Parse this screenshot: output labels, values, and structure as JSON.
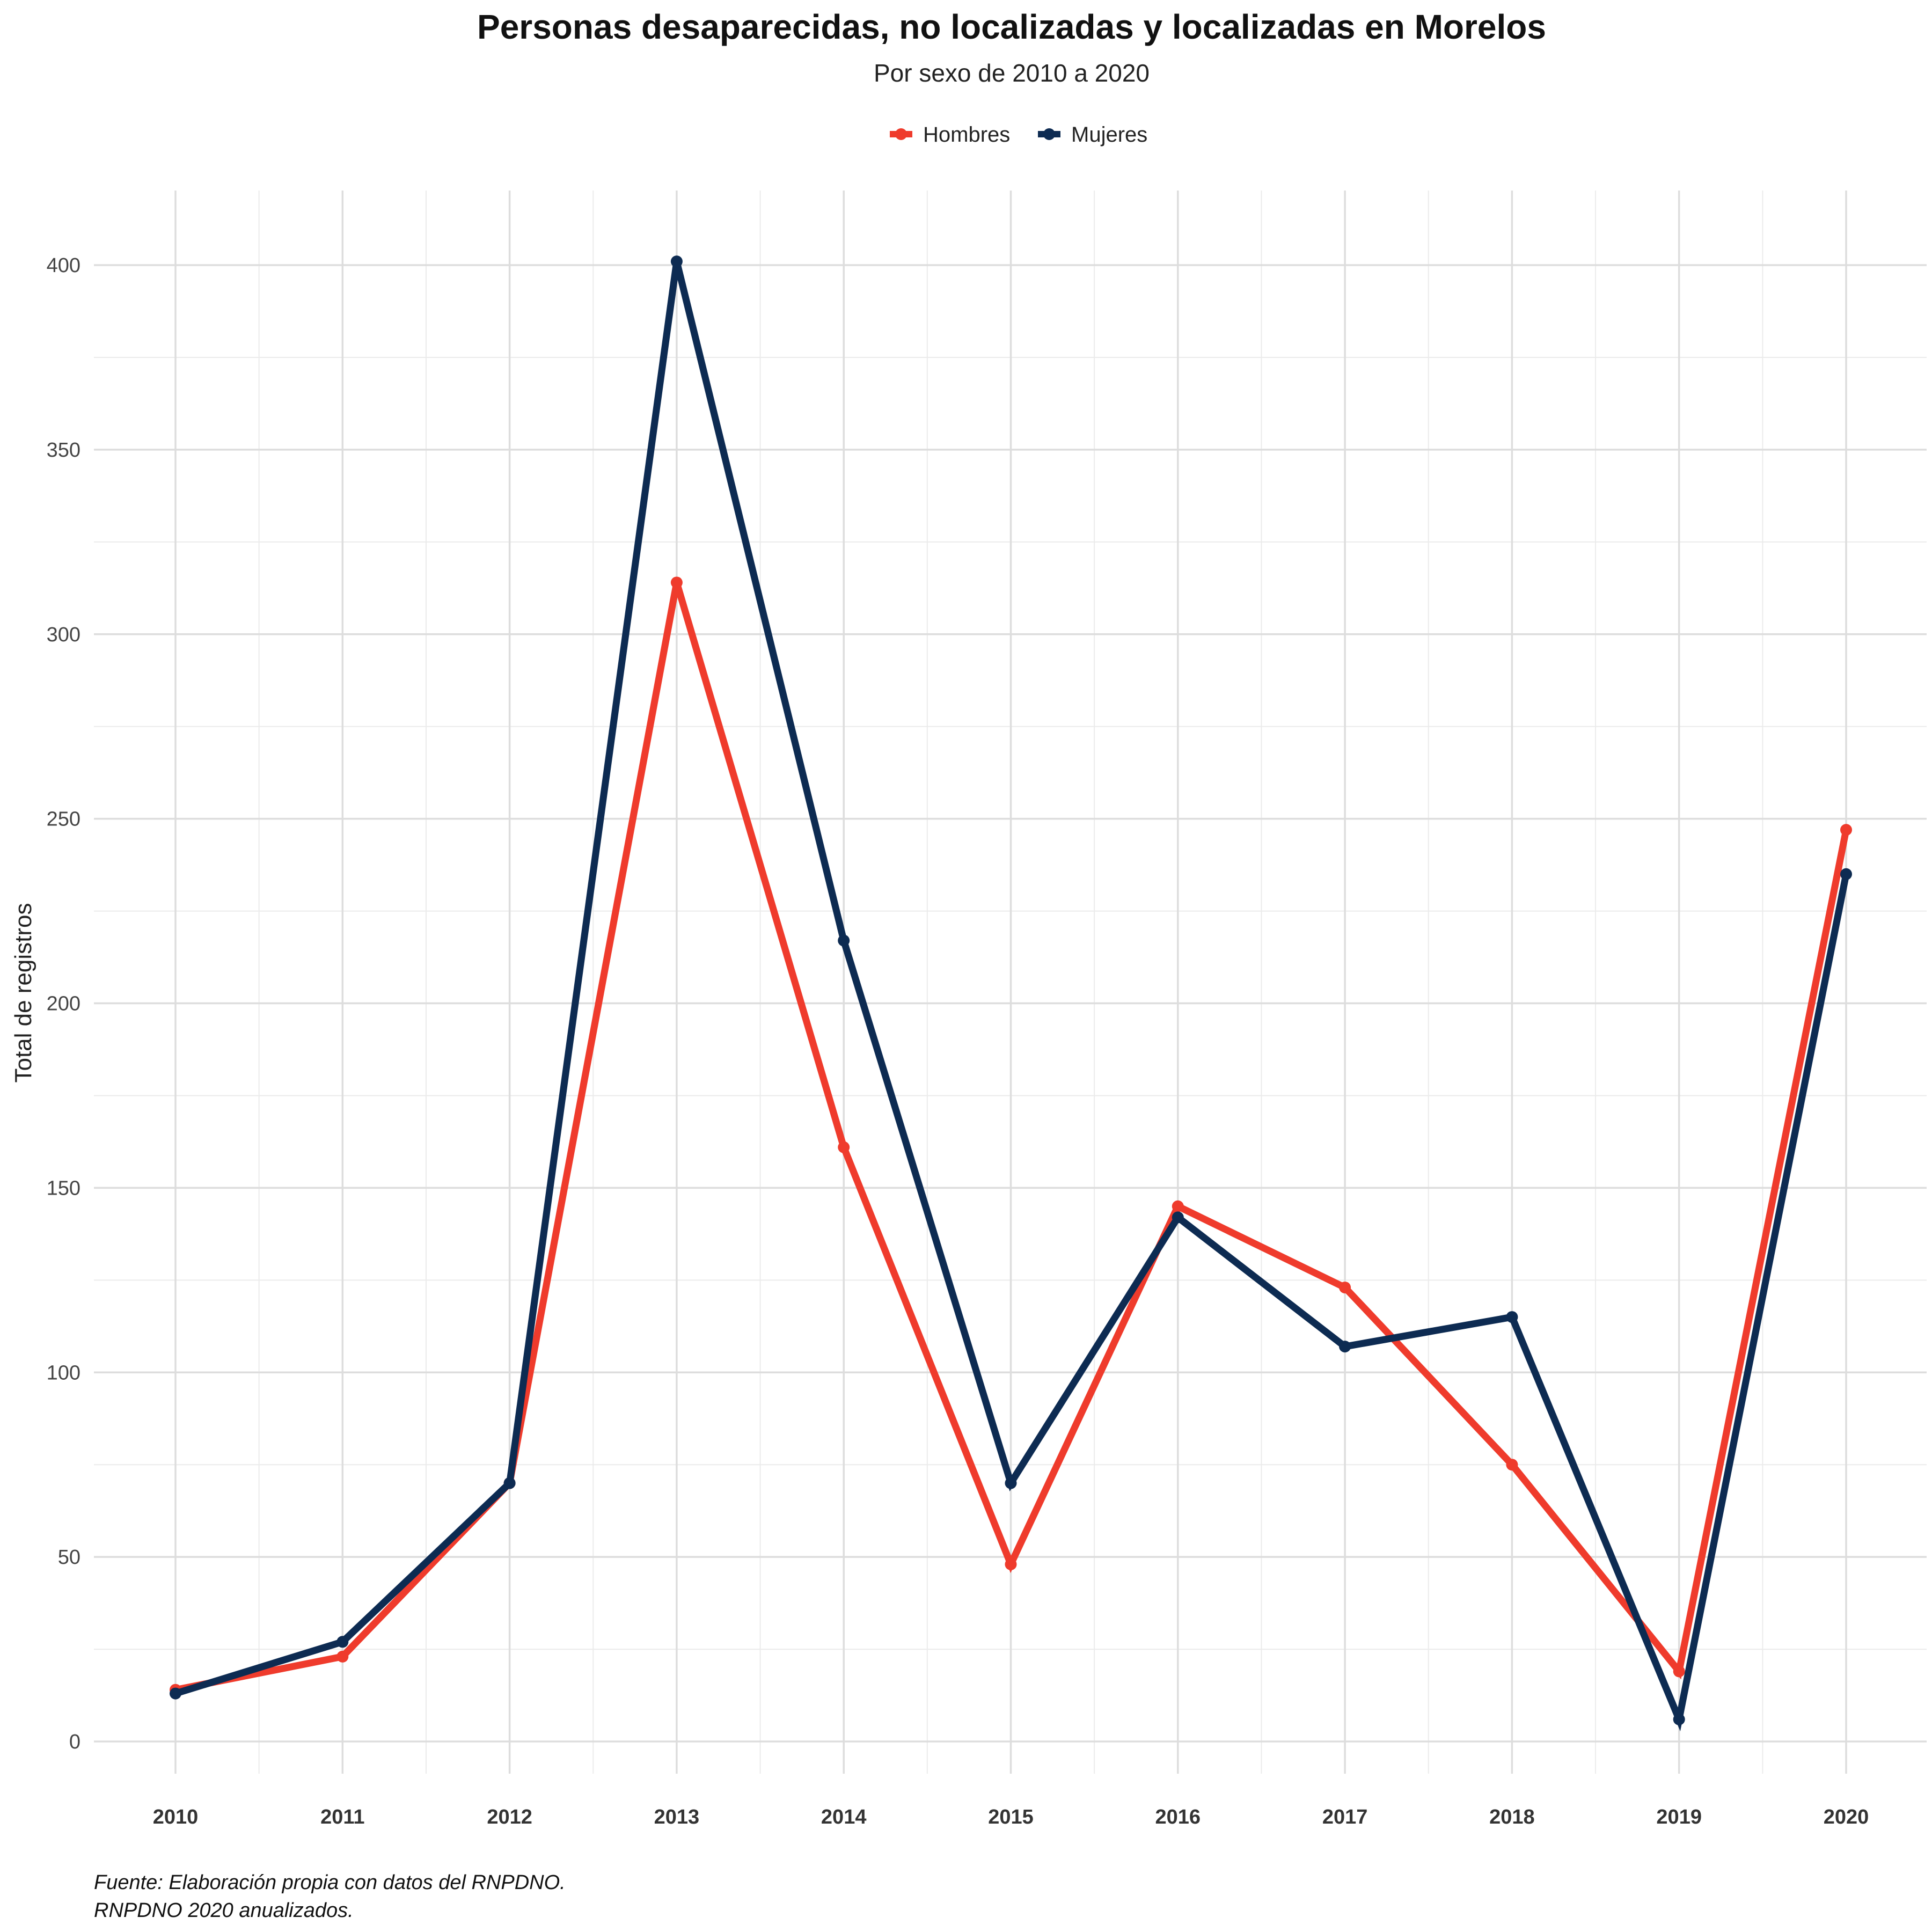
{
  "chart_data": {
    "type": "line",
    "title": "Personas desaparecidas, no localizadas y localizadas en Morelos",
    "subtitle": "Por sexo de 2010 a 2020",
    "ylabel": "Total de registros",
    "xlabel": "",
    "categories": [
      "2010",
      "2011",
      "2012",
      "2013",
      "2014",
      "2015",
      "2016",
      "2017",
      "2018",
      "2019",
      "2020"
    ],
    "yticks": [
      "0",
      "50",
      "100",
      "150",
      "200",
      "250",
      "300",
      "350",
      "400"
    ],
    "ylim": [
      -10,
      420
    ],
    "grid": true,
    "legend_position": "top",
    "series": [
      {
        "name": "Hombres",
        "color": "#EF3B2C",
        "values": [
          14,
          23,
          70,
          314,
          161,
          48,
          145,
          123,
          75,
          19,
          247
        ]
      },
      {
        "name": "Mujeres",
        "color": "#0D2B52",
        "values": [
          13,
          27,
          70,
          401,
          217,
          70,
          142,
          107,
          115,
          6,
          235
        ]
      }
    ],
    "caption_lines": [
      "Fuente: Elaboración propia con datos del RNPDNO.",
      "RNPDNO 2020 anualizados."
    ]
  }
}
